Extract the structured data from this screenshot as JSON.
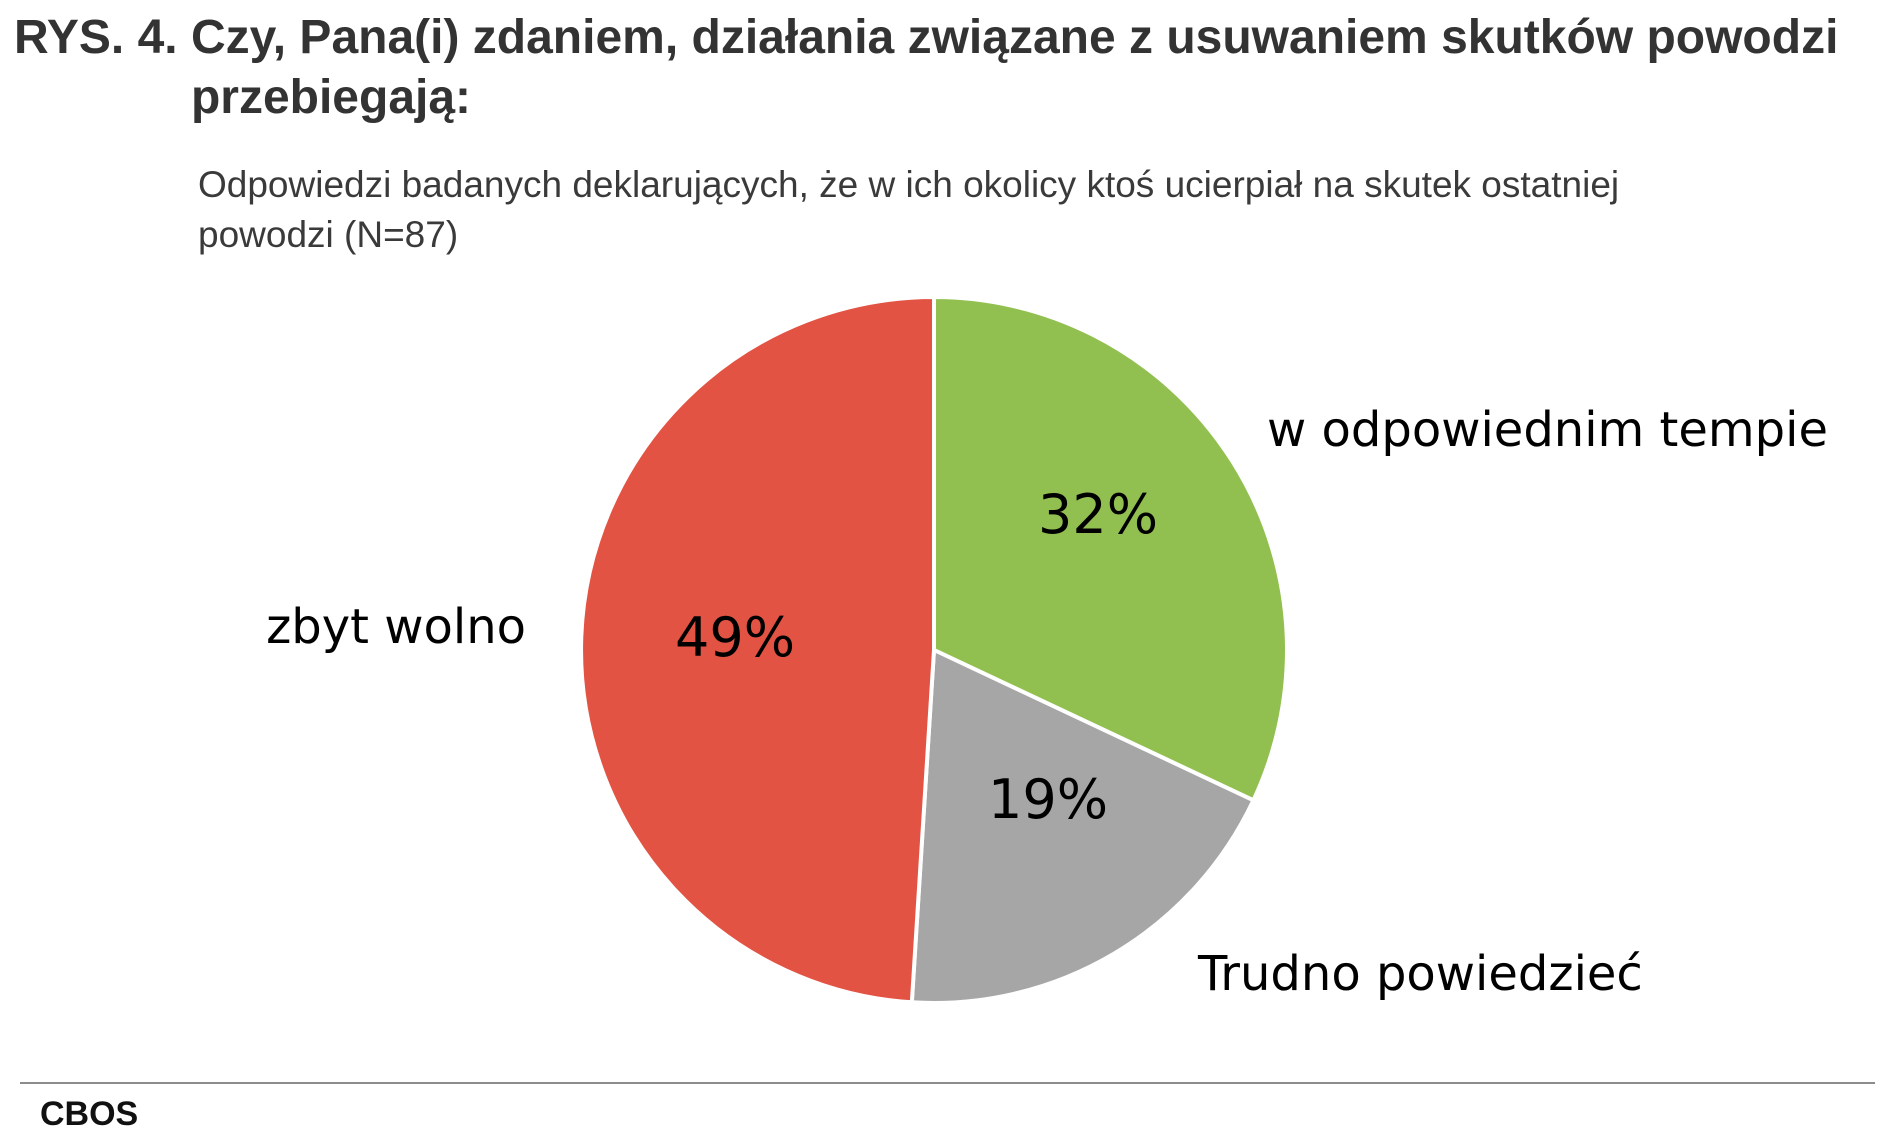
{
  "header": {
    "title_prefix": "RYS. 4. ",
    "title": "Czy, Pana(i) zdaniem, działania związane z usuwaniem skutków powodzi przebiegają:",
    "subtitle": "Odpowiedzi badanych deklarujących, że w ich okolicy ktoś ucierpiał na skutek ostatniej powodzi (N=87)"
  },
  "footer": {
    "source": "CBOS"
  },
  "chart_data": {
    "type": "pie",
    "title": "Czy, Pana(i) zdaniem, działania związane z usuwaniem skutków powodzi przebiegają:",
    "subtitle": "Odpowiedzi badanych deklarujących, że w ich okolicy ktoś ucierpiał na skutek ostatniej powodzi (N=87)",
    "slices": [
      {
        "name": "w odpowiednim tempie",
        "value": 32,
        "label": "32%",
        "color": "#92c050"
      },
      {
        "name": "Trudno powiedzieć",
        "value": 19,
        "label": "19%",
        "color": "#a6a6a6"
      },
      {
        "name": "zbyt wolno",
        "value": 49,
        "label": "49%",
        "color": "#e35343"
      }
    ],
    "start_direction": "top",
    "direction": "clockwise",
    "legend": "none"
  }
}
